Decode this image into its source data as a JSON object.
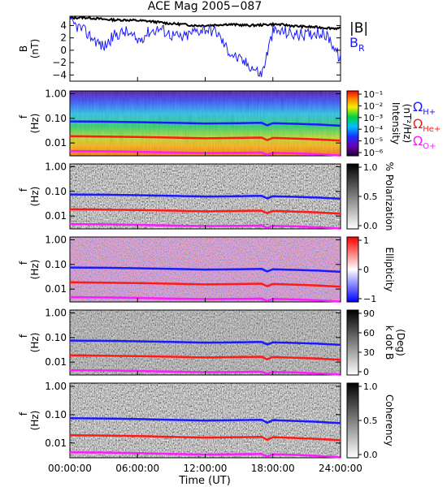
{
  "title": "ACE Mag 2005−087",
  "x_axis": {
    "label": "Time (UT)",
    "ticks": [
      "00:00:00",
      "06:00:00",
      "12:00:00",
      "18:00:00",
      "24:00:00"
    ]
  },
  "legend": {
    "top": [
      {
        "label": "|B|",
        "color": "#000000"
      },
      {
        "label": "B",
        "sub": "R",
        "color": "#1a1aff"
      }
    ],
    "gyro": [
      {
        "label": "Ω",
        "sub": "H+",
        "color": "#1a1aff"
      },
      {
        "label": "Ω",
        "sub": "He+",
        "color": "#ff1a1a"
      },
      {
        "label": "Ω",
        "sub": "O+",
        "color": "#ff1aff"
      }
    ]
  },
  "colors": {
    "bmag": "#000000",
    "br": "#1a1aff",
    "h_plus": "#1a1aff",
    "he_plus": "#ff1a1a",
    "o_plus": "#ff1aff"
  },
  "chart_data": [
    {
      "type": "line",
      "panel": "B",
      "ylabel": "B",
      "yunit": "(nT)",
      "x_hours": [
        0,
        1,
        2,
        3,
        4,
        5,
        6,
        7,
        8,
        9,
        10,
        11,
        12,
        13,
        14,
        15,
        16,
        17,
        18,
        19,
        20,
        21,
        22,
        23,
        24
      ],
      "ylim": [
        -5,
        5.5
      ],
      "yticks": [
        "4",
        "2",
        "0",
        "−2",
        "−4"
      ],
      "ytick_values": [
        4,
        2,
        0,
        -2,
        -4
      ],
      "series": [
        {
          "name": "|B|",
          "values": [
            5.2,
            5.3,
            5.2,
            5.0,
            4.9,
            4.9,
            4.8,
            4.7,
            4.5,
            4.3,
            4.2,
            4.0,
            4.0,
            4.1,
            4.2,
            4.1,
            4.0,
            4.1,
            4.2,
            4.1,
            3.9,
            3.8,
            3.7,
            3.6,
            3.5
          ]
        },
        {
          "name": "B",
          "values": [
            4.5,
            3.5,
            2.0,
            0.5,
            2.5,
            3.0,
            1.5,
            3.0,
            3.5,
            2.5,
            2.0,
            3.0,
            3.5,
            3.0,
            0.0,
            -1.5,
            -2.5,
            -4.0,
            3.0,
            3.0,
            2.5,
            2.5,
            3.0,
            2.0,
            -1.5
          ]
        }
      ]
    },
    {
      "type": "heatmap",
      "panel": "Intensity",
      "ylabel": "f",
      "yunit": "(Hz)",
      "yticks": [
        "1.00",
        "0.10",
        "0.01"
      ],
      "colorbar": {
        "label": "Intensity",
        "unit": "(nT²/Hz)",
        "ticks": [
          "10⁻¹",
          "10⁻²",
          "10⁻³",
          "10⁻⁴",
          "10⁻⁵",
          "10⁻⁶"
        ]
      }
    },
    {
      "type": "heatmap",
      "panel": "Polarization",
      "ylabel": "f",
      "yunit": "(Hz)",
      "yticks": [
        "1.00",
        "0.10",
        "0.01"
      ],
      "colorbar": {
        "label": "% Polarization",
        "ticks": [
          "1.0",
          "0.5",
          "0.0"
        ]
      }
    },
    {
      "type": "heatmap",
      "panel": "Ellipticity",
      "ylabel": "f",
      "yunit": "(Hz)",
      "yticks": [
        "1.00",
        "0.10",
        "0.01"
      ],
      "colorbar": {
        "label": "Ellipticity",
        "ticks": [
          "1",
          "0",
          "−1"
        ]
      }
    },
    {
      "type": "heatmap",
      "panel": "kdotB",
      "ylabel": "f",
      "yunit": "(Hz)",
      "yticks": [
        "1.00",
        "0.10",
        "0.01"
      ],
      "colorbar": {
        "label": "k dot B",
        "unit": "(Deg)",
        "ticks": [
          "90",
          "60",
          "30",
          "0"
        ]
      }
    },
    {
      "type": "heatmap",
      "panel": "Coherency",
      "ylabel": "f",
      "yunit": "(Hz)",
      "yticks": [
        "1.00",
        "0.10",
        "0.01"
      ],
      "colorbar": {
        "label": "Coherency",
        "ticks": [
          "1.0",
          "0.5",
          "0.0"
        ]
      }
    }
  ],
  "gyrofrequency_lines": {
    "x_hours": [
      0,
      3,
      6,
      9,
      12,
      15,
      17,
      17.5,
      18,
      20,
      22,
      24
    ],
    "h_plus_hz": [
      0.075,
      0.073,
      0.07,
      0.066,
      0.062,
      0.064,
      0.066,
      0.052,
      0.064,
      0.06,
      0.056,
      0.05
    ],
    "he_plus_hz": [
      0.0188,
      0.0183,
      0.0175,
      0.0165,
      0.0155,
      0.016,
      0.0165,
      0.013,
      0.016,
      0.015,
      0.014,
      0.0125
    ],
    "o_plus_hz": [
      0.0047,
      0.0046,
      0.0044,
      0.0041,
      0.0039,
      0.004,
      0.0041,
      0.0033,
      0.004,
      0.0038,
      0.0035,
      0.0031
    ]
  }
}
